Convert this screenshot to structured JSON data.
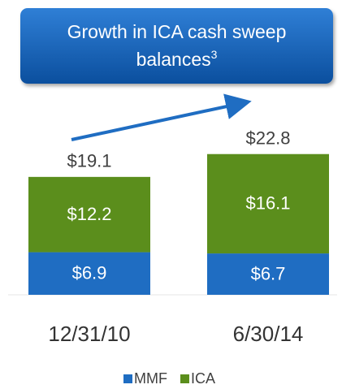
{
  "chart_data": {
    "type": "stacked_bar",
    "title": "Growth in ICA cash sweep balances",
    "title_footnote": "3",
    "categories": [
      "12/31/10",
      "6/30/14"
    ],
    "series": [
      {
        "name": "MMF",
        "color": "#1f6dc2",
        "values": [
          6.9,
          6.7
        ],
        "value_labels": [
          "$6.9",
          "$6.7"
        ]
      },
      {
        "name": "ICA",
        "color": "#5b8e1c",
        "values": [
          12.2,
          16.1
        ],
        "value_labels": [
          "$12.2",
          "$16.1"
        ]
      }
    ],
    "total_labels": [
      "$19.1",
      "$22.8"
    ],
    "ylim": [
      0,
      40
    ]
  }
}
